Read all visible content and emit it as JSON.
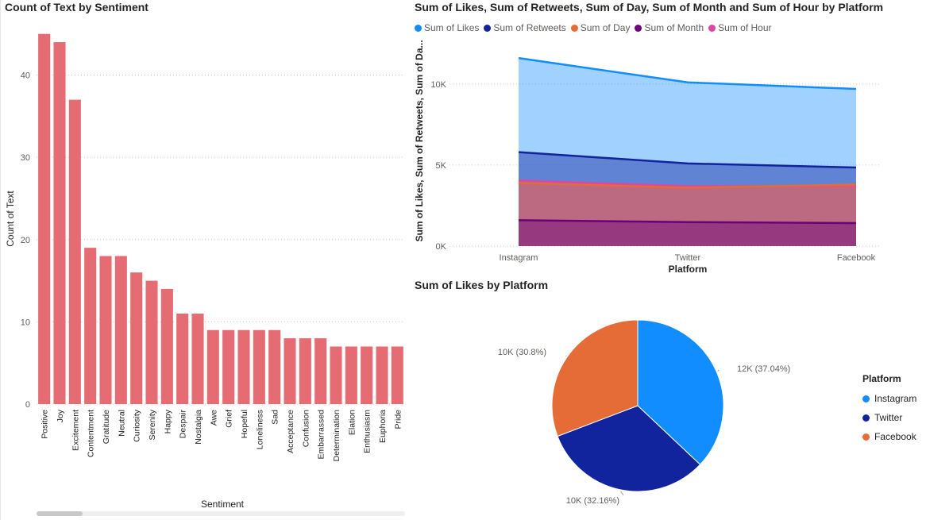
{
  "bar_visual": {
    "title": "Count of Text by Sentiment"
  },
  "area_visual": {
    "title": "Sum of Likes, Sum of Retweets, Sum of Day, Sum of Month and Sum of Hour by Platform"
  },
  "pie_visual": {
    "title": "Sum of Likes by Platform",
    "legend_title": "Platform"
  },
  "chart_data": [
    {
      "type": "bar",
      "title": "Count of Text by Sentiment",
      "xlabel": "Sentiment",
      "ylabel": "Count of Text",
      "ylim": [
        0,
        47
      ],
      "yticks": [
        0,
        10,
        20,
        30,
        40
      ],
      "grid": true,
      "color": "#E66C74",
      "categories": [
        "Positive",
        "Joy",
        "Excitement",
        "Contentment",
        "Gratitude",
        "Neutral",
        "Curiosity",
        "Serenity",
        "Happy",
        "Despair",
        "Nostalgia",
        "Awe",
        "Grief",
        "Hopeful",
        "Loneliness",
        "Sad",
        "Acceptance",
        "Confusion",
        "Embarrassed",
        "Determination",
        "Elation",
        "Enthusiasm",
        "Euphoria",
        "Pride"
      ],
      "values": [
        45,
        44,
        37,
        19,
        18,
        18,
        16,
        15,
        14,
        11,
        11,
        9,
        9,
        9,
        9,
        9,
        8,
        8,
        8,
        7,
        7,
        7,
        7,
        7
      ]
    },
    {
      "type": "area",
      "title": "Sum of Likes, Sum of Retweets, Sum of Day, Sum of Month and Sum of Hour by Platform",
      "xlabel": "Platform",
      "ylabel": "Sum of Likes, Sum of Retweets, Sum of Da...",
      "categories": [
        "Instagram",
        "Twitter",
        "Facebook"
      ],
      "ylim": [
        0,
        12000
      ],
      "yticks": [
        0,
        5000,
        10000
      ],
      "ytick_labels": [
        "0K",
        "5K",
        "10K"
      ],
      "legend_position": "top-left",
      "series": [
        {
          "name": "Sum of Likes",
          "color": "#118DFF",
          "values": [
            11600,
            10100,
            9700
          ]
        },
        {
          "name": "Sum of Retweets",
          "color": "#12239E",
          "values": [
            5800,
            5100,
            4850
          ]
        },
        {
          "name": "Sum of Day",
          "color": "#E66C37",
          "values": [
            3900,
            3600,
            3800
          ]
        },
        {
          "name": "Sum of Month",
          "color": "#6B007B",
          "values": [
            1600,
            1480,
            1420
          ]
        },
        {
          "name": "Sum of Hour",
          "color": "#E044A7",
          "values": [
            4050,
            3700,
            3700
          ]
        }
      ]
    },
    {
      "type": "pie",
      "title": "Sum of Likes by Platform",
      "legend_title": "Platform",
      "legend_position": "right",
      "slices": [
        {
          "name": "Instagram",
          "color": "#118DFF",
          "percent": 37.04,
          "label": "12K (37.04%)"
        },
        {
          "name": "Twitter",
          "color": "#12239E",
          "percent": 32.16,
          "label": "10K (32.16%)"
        },
        {
          "name": "Facebook",
          "color": "#E66C37",
          "percent": 30.8,
          "label": "10K (30.8%)"
        }
      ]
    }
  ]
}
